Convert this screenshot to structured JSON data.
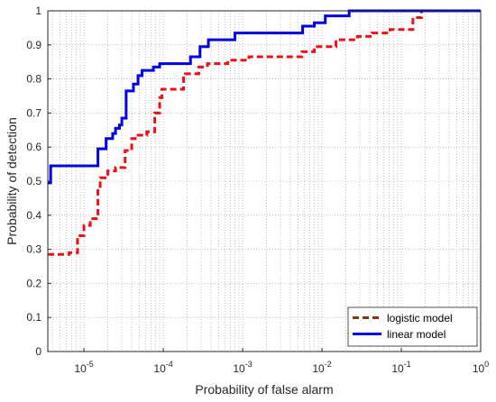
{
  "chart_data": {
    "type": "line",
    "title": "",
    "xlabel": "Probability of false alarm",
    "ylabel": "Probability of detection",
    "xscale": "log",
    "xlim": [
      3.5e-06,
      1
    ],
    "ylim": [
      0,
      1
    ],
    "grid": "on (dotted, major and minor)",
    "legend_position": "bottom-right",
    "x_ticks": [
      {
        "value": 1e-05,
        "base": "10",
        "exp": "-5"
      },
      {
        "value": 0.0001,
        "base": "10",
        "exp": "-4"
      },
      {
        "value": 0.001,
        "base": "10",
        "exp": "-3"
      },
      {
        "value": 0.01,
        "base": "10",
        "exp": "-2"
      },
      {
        "value": 0.1,
        "base": "10",
        "exp": "-1"
      },
      {
        "value": 1,
        "base": "10",
        "exp": "0"
      }
    ],
    "y_ticks": [
      "0",
      "0.1",
      "0.2",
      "0.3",
      "0.4",
      "0.5",
      "0.6",
      "0.7",
      "0.8",
      "0.9",
      "1"
    ],
    "series": [
      {
        "name": "logistic model",
        "color": "#e8111a",
        "legend_color": "#7a3b10",
        "style": "dashed",
        "step": true,
        "x": [
          3.5e-06,
          6.5e-06,
          8.3e-06,
          1e-05,
          1.2e-05,
          1.5e-05,
          1.6e-05,
          2e-05,
          2.5e-05,
          3.3e-05,
          4e-05,
          4.8e-05,
          6.2e-05,
          7.8e-05,
          9e-05,
          9.6e-05,
          0.00018,
          0.00019,
          0.00028,
          0.00036,
          0.0005,
          0.00065,
          0.0012,
          0.0026,
          0.0056,
          0.008,
          0.015,
          0.028,
          0.043,
          0.072,
          0.14,
          0.18,
          1
        ],
        "y": [
          0.285,
          0.29,
          0.34,
          0.37,
          0.39,
          0.48,
          0.51,
          0.53,
          0.54,
          0.59,
          0.625,
          0.635,
          0.645,
          0.7,
          0.745,
          0.77,
          0.81,
          0.815,
          0.835,
          0.845,
          0.845,
          0.855,
          0.865,
          0.865,
          0.88,
          0.895,
          0.915,
          0.925,
          0.935,
          0.945,
          0.98,
          1.0,
          1.0
        ]
      },
      {
        "name": "linear model",
        "color": "#0000e0",
        "style": "solid",
        "step": true,
        "x": [
          3.5e-06,
          3.8e-06,
          1.5e-05,
          1.9e-05,
          2.3e-05,
          2.5e-05,
          2.8e-05,
          3e-05,
          3.4e-05,
          4.2e-05,
          4.8e-05,
          5.4e-05,
          7.5e-05,
          9e-05,
          0.00022,
          0.00029,
          0.00037,
          0.00045,
          0.0008,
          0.0027,
          0.0057,
          0.008,
          0.011,
          0.022,
          1
        ],
        "y": [
          0.495,
          0.545,
          0.595,
          0.625,
          0.64,
          0.655,
          0.665,
          0.685,
          0.765,
          0.785,
          0.81,
          0.825,
          0.835,
          0.845,
          0.865,
          0.895,
          0.915,
          0.915,
          0.935,
          0.935,
          0.955,
          0.965,
          0.985,
          1.0,
          1.0
        ]
      }
    ]
  }
}
